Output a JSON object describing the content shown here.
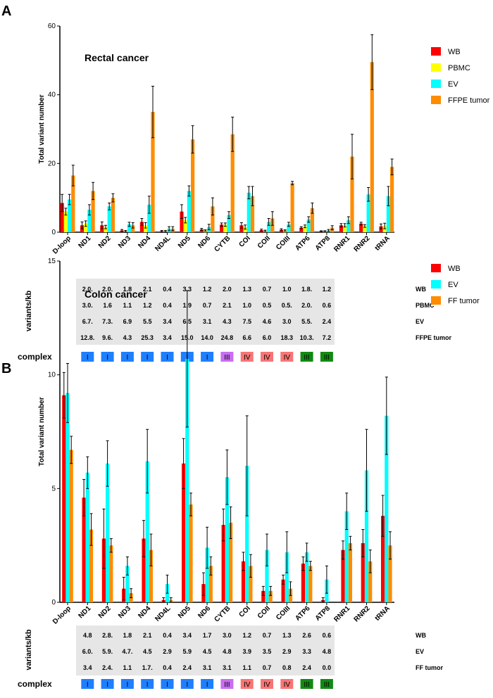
{
  "colors": {
    "WB": "#ff0000",
    "PBMC": "#ffff00",
    "EV": "#00ffff",
    "FFPE tumor": "#ff8c00",
    "FF tumor": "#ff8c00",
    "I": "#1e7fff",
    "III": "#c86ef0",
    "IV": "#f87575",
    "V": "#118a11"
  },
  "complex_label": "complex",
  "table_ylabel": "variants/kb",
  "chart_data": [
    {
      "panel": "A",
      "type": "bar",
      "title": "Rectal cancer",
      "ylabel": "Total variant number",
      "ylim": [
        0,
        60
      ],
      "yticks": [
        0,
        20,
        40,
        60
      ],
      "categories": [
        "D-loop",
        "ND1",
        "ND2",
        "ND3",
        "ND4",
        "ND4L",
        "ND5",
        "ND6",
        "CYTB",
        "COI",
        "COII",
        "COIII",
        "ATP6",
        "ATP8",
        "RNR1",
        "RNR2",
        "tRNA"
      ],
      "series": [
        {
          "name": "WB",
          "values": [
            8.5,
            2,
            2,
            0.5,
            3,
            0.3,
            6,
            0.8,
            2.2,
            2,
            0.6,
            0.7,
            1.3,
            0.3,
            2,
            2.5,
            1.7
          ],
          "errors": [
            2.5,
            1,
            1,
            0.3,
            1,
            0.2,
            2,
            0.3,
            0.5,
            0.8,
            0.3,
            0.3,
            0.3,
            0.1,
            0.5,
            0.4,
            0.7
          ]
        },
        {
          "name": "PBMC",
          "values": [
            6,
            2.5,
            1.5,
            0.3,
            2,
            0.3,
            3.5,
            0.5,
            2.2,
            1.5,
            0.4,
            0.5,
            1.7,
            0.3,
            2,
            1.8,
            1.8
          ],
          "errors": [
            1,
            0.8,
            0.5,
            0.2,
            0.8,
            0.2,
            0.8,
            0.2,
            0.5,
            0.6,
            0.2,
            0.2,
            0.4,
            0.1,
            0.5,
            0.4,
            0.8
          ]
        },
        {
          "name": "EV",
          "values": [
            9.5,
            6.5,
            7.5,
            2.3,
            8,
            1,
            12,
            1.5,
            5,
            11.5,
            3,
            2.3,
            3.7,
            0.5,
            3.5,
            11,
            10.5
          ],
          "errors": [
            1.5,
            1.5,
            1,
            0.6,
            2.5,
            0.6,
            1.5,
            0.8,
            1,
            1.8,
            1,
            0.6,
            0.8,
            0.3,
            1,
            2,
            2.8
          ]
        },
        {
          "name": "FFPE tumor",
          "values": [
            16.5,
            12,
            10,
            2,
            35,
            1,
            27,
            7.5,
            28.5,
            10.5,
            4,
            14.3,
            7,
            1.3,
            22,
            49.5,
            19
          ]
        }
      ],
      "ffpe_errors": [
        3,
        2.5,
        1.2,
        0.8,
        7.5,
        0.6,
        4,
        2.5,
        5,
        2.8,
        2,
        0.5,
        1.5,
        0.6,
        6.5,
        8,
        2.3
      ],
      "legend": [
        "WB",
        "PBMC",
        "EV",
        "FFPE tumor"
      ],
      "table": {
        "columns": [
          "ND1",
          "ND2",
          "ND3",
          "ND4",
          "ND4L",
          "ND5",
          "ND6",
          "CYTB",
          "COI",
          "COII",
          "COIII",
          "ATP6",
          "ATP8"
        ],
        "rows": [
          {
            "label": "WB",
            "values": [
              "2.0.",
              "2.0.",
              "1.8",
              "2.1",
              "0.4",
              "3.3",
              "1.2",
              "2.0",
              "1.3",
              "0.7",
              "1.0",
              "1.8.",
              "1.2"
            ]
          },
          {
            "label": "PBMC",
            "values": [
              "3.0.",
              "1.6",
              "1.1",
              "1.2",
              "0.4",
              "1.9",
              "0.7",
              "2.1",
              "1.0",
              "0.5",
              "0.5.",
              "2.0.",
              "0.6"
            ]
          },
          {
            "label": "EV",
            "values": [
              "6.7.",
              "7.3.",
              "6.9",
              "5.5",
              "3.4",
              "6.5",
              "3.1",
              "4.3",
              "7.5",
              "4.6",
              "3.0",
              "5.5.",
              "2.4"
            ]
          },
          {
            "label": "FFPE tumor",
            "values": [
              "12.8.",
              "9.6.",
              "4.3",
              "25.3",
              "3.4",
              "15.0",
              "14.0",
              "24.8",
              "6.6",
              "6.0",
              "18.3",
              "10.3.",
              "7.2"
            ]
          }
        ]
      },
      "complex": [
        "I",
        "I",
        "I",
        "I",
        "I",
        "I",
        "I",
        "III",
        "IV",
        "IV",
        "IV",
        "III",
        "III"
      ],
      "complex_colors": [
        "I",
        "I",
        "I",
        "I",
        "I",
        "I",
        "I",
        "III",
        "IV",
        "IV",
        "IV",
        "V",
        "V"
      ]
    },
    {
      "panel": "B",
      "type": "bar",
      "title": "Colon cancer",
      "ylabel": "Total variant number",
      "ylim": [
        0,
        15
      ],
      "yticks": [
        0,
        5,
        10,
        15
      ],
      "categories": [
        "D-loop",
        "ND1",
        "ND2",
        "ND3",
        "ND4",
        "ND4L",
        "ND5",
        "ND6",
        "CYTB",
        "COI",
        "COII",
        "COIII",
        "ATP6",
        "ATP8",
        "RNR1",
        "RNR2",
        "tRNA"
      ],
      "series": [
        {
          "name": "WB",
          "values": [
            9.1,
            4.6,
            2.8,
            0.6,
            2.8,
            0.1,
            6.1,
            0.8,
            3.4,
            1.8,
            0.5,
            1.0,
            1.7,
            0.1,
            2.3,
            2.6,
            3.8
          ],
          "errors": [
            1,
            0.8,
            1.3,
            0.5,
            0.8,
            0.1,
            1.1,
            0.5,
            0.7,
            0.4,
            0.2,
            0.2,
            0.3,
            0.1,
            0.4,
            0.6,
            0.9
          ]
        },
        {
          "name": "EV",
          "values": [
            9.2,
            5.7,
            6.1,
            1.6,
            6.2,
            0.8,
            10.7,
            2.4,
            5.5,
            6.0,
            2.3,
            2.2,
            2.2,
            1.0,
            4.0,
            5.8,
            8.2
          ],
          "errors": [
            1.3,
            0.7,
            1,
            0.4,
            1.4,
            0.4,
            3,
            0.9,
            1.2,
            2.2,
            0.7,
            0.9,
            0.4,
            0.6,
            0.8,
            1.8,
            1.7
          ]
        },
        {
          "name": "FF tumor",
          "values": [
            6.7,
            3.2,
            2.5,
            0.4,
            2.3,
            0.1,
            4.3,
            1.6,
            3.5,
            1.6,
            0.5,
            0.6,
            1.6,
            0,
            2.6,
            1.8,
            2.5
          ],
          "errors": [
            0.6,
            0.7,
            0.3,
            0.2,
            0.7,
            0.1,
            0.5,
            0.4,
            0.7,
            0.5,
            0.2,
            0.3,
            0.2,
            0,
            0.3,
            0.5,
            0.6
          ]
        }
      ],
      "legend": [
        "WB",
        "EV",
        "FF tumor"
      ],
      "table": {
        "columns": [
          "ND1",
          "ND2",
          "ND3",
          "ND4",
          "ND4L",
          "ND5",
          "ND6",
          "CYTB",
          "COI",
          "COII",
          "COIII",
          "ATP6",
          "ATP8"
        ],
        "rows": [
          {
            "label": "WB",
            "values": [
              "4.8",
              "2.8.",
              "1.8",
              "2.1",
              "0.4",
              "3.4",
              "1.7",
              "3.0",
              "1.2",
              "0.7",
              "1.3",
              "2.6",
              "0.6"
            ]
          },
          {
            "label": "EV",
            "values": [
              "6.0.",
              "5.9.",
              "4.7.",
              "4.5",
              "2.9",
              "5.9",
              "4.5",
              "4.8",
              "3.9",
              "3.5",
              "2.9",
              "3.3",
              "4.8"
            ]
          },
          {
            "label": "FF tumor",
            "values": [
              "3.4",
              "2.4.",
              "1.1",
              "1.7.",
              "0.4",
              "2.4",
              "3.1",
              "3.1",
              "1.1",
              "0.7",
              "0.8",
              "2.4",
              "0.0"
            ]
          }
        ]
      },
      "complex": [
        "I",
        "I",
        "I",
        "I",
        "I",
        "I",
        "I",
        "III",
        "IV",
        "IV",
        "IV",
        "III",
        "III"
      ],
      "complex_colors": [
        "I",
        "I",
        "I",
        "I",
        "I",
        "I",
        "I",
        "III",
        "IV",
        "IV",
        "IV",
        "V",
        "V"
      ]
    }
  ]
}
